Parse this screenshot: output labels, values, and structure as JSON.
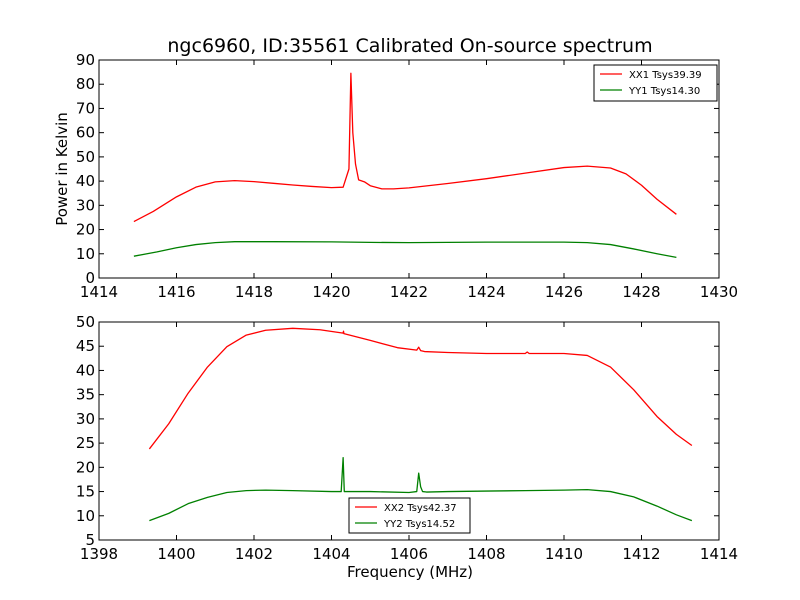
{
  "title": "ngc6960, ID:35561 Calibrated On-source spectrum",
  "chart_data": [
    {
      "type": "line",
      "title": "ngc6960, ID:35561 Calibrated On-source spectrum",
      "xlabel": "",
      "ylabel": "Power in Kelvin",
      "xlim": [
        1414,
        1430
      ],
      "ylim": [
        0,
        90
      ],
      "xticks": [
        1414,
        1416,
        1418,
        1420,
        1422,
        1424,
        1426,
        1428,
        1430
      ],
      "yticks": [
        0,
        10,
        20,
        30,
        40,
        50,
        60,
        70,
        80,
        90
      ],
      "legend": "top-right",
      "series": [
        {
          "name": "XX1 Tsys39.39",
          "color": "#ff0000",
          "x": [
            1414.9,
            1415.4,
            1416.0,
            1416.5,
            1417.0,
            1417.5,
            1418.0,
            1418.5,
            1419.0,
            1419.5,
            1420.0,
            1420.3,
            1420.45,
            1420.5,
            1420.55,
            1420.62,
            1420.7,
            1420.85,
            1421.0,
            1421.3,
            1421.6,
            1422.0,
            1423.0,
            1424.0,
            1425.0,
            1426.0,
            1426.6,
            1427.2,
            1427.6,
            1428.0,
            1428.4,
            1428.9
          ],
          "y": [
            23.3,
            27.5,
            33.5,
            37.5,
            39.7,
            40.2,
            39.8,
            39.1,
            38.4,
            37.8,
            37.3,
            37.5,
            45.0,
            84.5,
            60.0,
            47.0,
            40.5,
            39.7,
            38.1,
            36.8,
            36.8,
            37.2,
            39.0,
            41.0,
            43.3,
            45.6,
            46.2,
            45.4,
            43.0,
            38.3,
            32.5,
            26.3
          ]
        },
        {
          "name": "YY1 Tsys14.30",
          "color": "#008000",
          "x": [
            1414.9,
            1415.5,
            1416.0,
            1416.5,
            1417.0,
            1417.5,
            1418.5,
            1420.0,
            1421.0,
            1422.0,
            1424.0,
            1426.0,
            1426.6,
            1427.2,
            1427.8,
            1428.4,
            1428.9
          ],
          "y": [
            9.0,
            10.8,
            12.5,
            13.8,
            14.6,
            15.0,
            15.0,
            14.9,
            14.7,
            14.6,
            14.8,
            14.8,
            14.6,
            13.8,
            12.0,
            10.0,
            8.5
          ]
        }
      ]
    },
    {
      "type": "line",
      "title": "",
      "xlabel": "Frequency (MHz)",
      "ylabel": "",
      "xlim": [
        1398,
        1414
      ],
      "ylim": [
        5,
        50
      ],
      "xticks": [
        1398,
        1400,
        1402,
        1404,
        1406,
        1408,
        1410,
        1412,
        1414
      ],
      "yticks": [
        5,
        10,
        15,
        20,
        25,
        30,
        35,
        40,
        45,
        50
      ],
      "legend": "bottom-center",
      "series": [
        {
          "name": "XX2 Tsys42.37",
          "color": "#ff0000",
          "x": [
            1399.3,
            1399.8,
            1400.3,
            1400.8,
            1401.3,
            1401.8,
            1402.3,
            1403.0,
            1403.7,
            1404.3,
            1404.31,
            1404.32,
            1405.0,
            1405.7,
            1406.2,
            1406.25,
            1406.3,
            1406.4,
            1407.0,
            1408.0,
            1409.0,
            1409.05,
            1409.1,
            1410.0,
            1410.6,
            1411.2,
            1411.8,
            1412.4,
            1412.9,
            1413.3
          ],
          "y": [
            23.8,
            29.0,
            35.3,
            40.7,
            44.9,
            47.3,
            48.3,
            48.7,
            48.4,
            47.7,
            48.1,
            47.6,
            46.2,
            44.7,
            44.2,
            44.8,
            44.1,
            43.9,
            43.7,
            43.5,
            43.5,
            43.8,
            43.5,
            43.5,
            43.1,
            40.7,
            36.0,
            30.5,
            26.8,
            24.5
          ]
        },
        {
          "name": "YY2 Tsys14.52",
          "color": "#008000",
          "x": [
            1399.3,
            1399.8,
            1400.3,
            1400.8,
            1401.3,
            1401.8,
            1402.3,
            1403.0,
            1404.0,
            1404.25,
            1404.3,
            1404.33,
            1404.36,
            1405.0,
            1406.0,
            1406.2,
            1406.25,
            1406.3,
            1406.35,
            1406.45,
            1407.0,
            1408.0,
            1409.0,
            1410.0,
            1410.6,
            1411.2,
            1411.8,
            1412.4,
            1412.9,
            1413.3
          ],
          "y": [
            9.0,
            10.5,
            12.5,
            13.8,
            14.8,
            15.2,
            15.3,
            15.2,
            15.0,
            15.0,
            22.0,
            15.0,
            15.0,
            15.0,
            14.8,
            15.0,
            18.8,
            16.0,
            15.0,
            14.9,
            15.0,
            15.1,
            15.2,
            15.3,
            15.4,
            15.0,
            13.9,
            12.0,
            10.2,
            9.0
          ]
        }
      ]
    }
  ]
}
